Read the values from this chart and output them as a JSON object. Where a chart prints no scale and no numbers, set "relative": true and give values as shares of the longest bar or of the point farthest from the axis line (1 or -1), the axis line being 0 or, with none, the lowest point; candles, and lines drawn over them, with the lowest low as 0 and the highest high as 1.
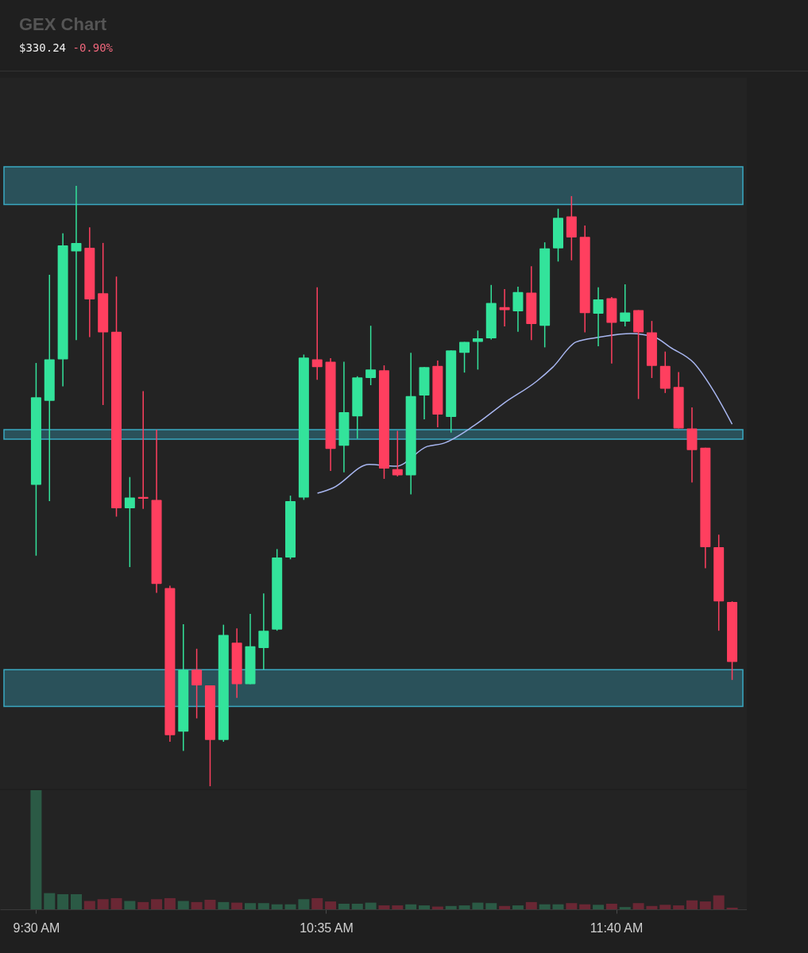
{
  "chart_data": [
    {
      "type": "candlestick",
      "title": "GEX Chart",
      "subtitle": "$330.24",
      "annotations": [
        "-0.90%"
      ],
      "relative": true,
      "tick_labels": false,
      "x": [
        9.5,
        9.55,
        9.6,
        9.65,
        9.7,
        9.75,
        9.8,
        9.85,
        9.9,
        9.95,
        10,
        10.05,
        10.1,
        10.15,
        10.2,
        10.25,
        10.3,
        10.35,
        10.4,
        10.45,
        10.5,
        10.55,
        10.6,
        10.65,
        10.7,
        10.75,
        10.8,
        10.85,
        10.9,
        10.95,
        11,
        11.05,
        11.1,
        11.15,
        11.2,
        11.25,
        11.3,
        11.35,
        11.4,
        11.45,
        11.5,
        11.55,
        11.6,
        11.65,
        11.7,
        11.75,
        11.8,
        11.85,
        11.9,
        11.95,
        12,
        12.05,
        12.1
      ],
      "xlim": [
        9.38,
        12.14
      ],
      "ohlc": [
        [
          0.502,
          0.705,
          0.384,
          0.648
        ],
        [
          0.642,
          0.852,
          0.475,
          0.711
        ],
        [
          0.711,
          0.921,
          0.666,
          0.901
        ],
        [
          0.891,
          1,
          0.743,
          0.905
        ],
        [
          0.897,
          0.931,
          0.748,
          0.811
        ],
        [
          0.821,
          0.905,
          0.635,
          0.756
        ],
        [
          0.757,
          0.849,
          0.449,
          0.463
        ],
        [
          0.463,
          0.515,
          0.365,
          0.481
        ],
        [
          0.482,
          0.658,
          0.462,
          0.479
        ],
        [
          0.477,
          0.594,
          0.322,
          0.337
        ],
        [
          0.33,
          0.334,
          0.074,
          0.085
        ],
        [
          0.091,
          0.27,
          0.059,
          0.194
        ],
        [
          0.194,
          0.229,
          0.113,
          0.168
        ],
        [
          0.168,
          0.168,
          0,
          0.077
        ],
        [
          0.077,
          0.269,
          0.074,
          0.252
        ],
        [
          0.239,
          0.263,
          0.147,
          0.17
        ],
        [
          0.17,
          0.287,
          0.17,
          0.233
        ],
        [
          0.23,
          0.321,
          0.194,
          0.259
        ],
        [
          0.261,
          0.395,
          0.259,
          0.381
        ],
        [
          0.381,
          0.484,
          0.378,
          0.475
        ],
        [
          0.481,
          0.719,
          0.477,
          0.714
        ],
        [
          0.711,
          0.831,
          0.677,
          0.698
        ],
        [
          0.707,
          0.713,
          0.525,
          0.562
        ],
        [
          0.567,
          0.707,
          0.523,
          0.623
        ],
        [
          0.616,
          0.683,
          0.579,
          0.681
        ],
        [
          0.68,
          0.767,
          0.668,
          0.694
        ],
        [
          0.693,
          0.701,
          0.512,
          0.529
        ],
        [
          0.528,
          0.592,
          0.516,
          0.518
        ],
        [
          0.518,
          0.722,
          0.486,
          0.65
        ],
        [
          0.651,
          0.698,
          0.611,
          0.698
        ],
        [
          0.7,
          0.709,
          0.598,
          0.619
        ],
        [
          0.615,
          0.726,
          0.589,
          0.726
        ],
        [
          0.722,
          0.74,
          0.689,
          0.74
        ],
        [
          0.74,
          0.759,
          0.694,
          0.746
        ],
        [
          0.746,
          0.835,
          0.744,
          0.805
        ],
        [
          0.798,
          0.828,
          0.766,
          0.793
        ],
        [
          0.791,
          0.832,
          0.757,
          0.823
        ],
        [
          0.822,
          0.866,
          0.743,
          0.77
        ],
        [
          0.767,
          0.906,
          0.731,
          0.896
        ],
        [
          0.896,
          0.962,
          0.874,
          0.947
        ],
        [
          0.949,
          0.983,
          0.876,
          0.914
        ],
        [
          0.915,
          0.934,
          0.756,
          0.788
        ],
        [
          0.787,
          0.831,
          0.733,
          0.811
        ],
        [
          0.813,
          0.815,
          0.704,
          0.772
        ],
        [
          0.774,
          0.836,
          0.766,
          0.789
        ],
        [
          0.793,
          0.793,
          0.645,
          0.756
        ],
        [
          0.756,
          0.775,
          0.68,
          0.7
        ],
        [
          0.7,
          0.724,
          0.655,
          0.662
        ],
        [
          0.665,
          0.69,
          0.596,
          0.596
        ],
        [
          0.596,
          0.631,
          0.506,
          0.56
        ],
        [
          0.564,
          0.564,
          0.363,
          0.398
        ],
        [
          0.398,
          0.419,
          0.259,
          0.308
        ],
        [
          0.307,
          0.308,
          0.177,
          0.207
        ]
      ],
      "colors": [
        "#33e39b",
        "#33e39b",
        "#33e39b",
        "#33e39b",
        "#ff3f5f",
        "#ff3f5f",
        "#ff3f5f",
        "#33e39b",
        "#ff3f5f",
        "#ff3f5f",
        "#ff3f5f",
        "#33e39b",
        "#ff3f5f",
        "#ff3f5f",
        "#33e39b",
        "#ff3f5f",
        "#33e39b",
        "#33e39b",
        "#33e39b",
        "#33e39b",
        "#33e39b",
        "#ff3f5f",
        "#ff3f5f",
        "#33e39b",
        "#33e39b",
        "#33e39b",
        "#ff3f5f",
        "#ff3f5f",
        "#33e39b",
        "#33e39b",
        "#ff3f5f",
        "#33e39b",
        "#33e39b",
        "#33e39b",
        "#33e39b",
        "#ff3f5f",
        "#33e39b",
        "#ff3f5f",
        "#33e39b",
        "#33e39b",
        "#ff3f5f",
        "#ff3f5f",
        "#33e39b",
        "#ff3f5f",
        "#33e39b",
        "#ff3f5f",
        "#ff3f5f",
        "#ff3f5f",
        "#ff3f5f",
        "#ff3f5f",
        "#ff3f5f",
        "#ff3f5f",
        "#ff3f5f"
      ],
      "series": [
        {
          "type": "line",
          "color": "#a8b6f0",
          "x": [
            10.551,
            10.61,
            10.744,
            10.844,
            10.961,
            11.02,
            11.137,
            11.254,
            11.371,
            11.43,
            11.517,
            11.605,
            11.722,
            11.81,
            11.869,
            11.957,
            12.03,
            12.1
          ],
          "values": [
            0.488,
            0.497,
            0.536,
            0.533,
            0.566,
            0.571,
            0.601,
            0.64,
            0.675,
            0.698,
            0.74,
            0.748,
            0.754,
            0.748,
            0.731,
            0.705,
            0.659,
            0.603
          ]
        }
      ],
      "bands": [
        {
          "axis": "y",
          "from": 0.969,
          "to": 1.032,
          "color": "#3aa9c2"
        },
        {
          "axis": "y",
          "from": 0.578,
          "to": 0.594,
          "color": "#3aa9c2"
        },
        {
          "axis": "y",
          "from": 0.133,
          "to": 0.194,
          "color": "#3aa9c2"
        }
      ]
    },
    {
      "type": "bar",
      "relative": true,
      "tick_labels": "x",
      "x": [
        9.5,
        9.55,
        9.6,
        9.65,
        9.7,
        9.75,
        9.8,
        9.85,
        9.9,
        9.95,
        10,
        10.05,
        10.1,
        10.15,
        10.2,
        10.25,
        10.3,
        10.35,
        10.4,
        10.45,
        10.5,
        10.55,
        10.6,
        10.65,
        10.7,
        10.75,
        10.8,
        10.85,
        10.9,
        10.95,
        11,
        11.05,
        11.1,
        11.15,
        11.2,
        11.25,
        11.3,
        11.35,
        11.4,
        11.45,
        11.5,
        11.55,
        11.6,
        11.65,
        11.7,
        11.75,
        11.8,
        11.85,
        11.9,
        11.95,
        12,
        12.05,
        12.1
      ],
      "xlim": [
        9.38,
        12.14
      ],
      "xticks": [
        {
          "value": 9.5,
          "label": "9:30 AM"
        },
        {
          "value": 10.5833,
          "label": "10:35 AM"
        },
        {
          "value": 11.6667,
          "label": "11:40 AM"
        }
      ],
      "values": [
        1,
        0.136,
        0.127,
        0.127,
        0.07,
        0.085,
        0.094,
        0.07,
        0.061,
        0.085,
        0.094,
        0.07,
        0.061,
        0.08,
        0.061,
        0.056,
        0.052,
        0.052,
        0.042,
        0.042,
        0.085,
        0.094,
        0.066,
        0.047,
        0.047,
        0.056,
        0.033,
        0.033,
        0.042,
        0.033,
        0.023,
        0.028,
        0.033,
        0.056,
        0.052,
        0.028,
        0.033,
        0.061,
        0.042,
        0.042,
        0.052,
        0.042,
        0.038,
        0.047,
        0.019,
        0.052,
        0.028,
        0.038,
        0.033,
        0.075,
        0.066,
        0.117,
        0.014
      ],
      "colors": [
        "#2b5a45",
        "#2b5a45",
        "#2b5a45",
        "#2b5a45",
        "#6a2734",
        "#6a2734",
        "#6a2734",
        "#2b5a45",
        "#6a2734",
        "#6a2734",
        "#6a2734",
        "#2b5a45",
        "#6a2734",
        "#6a2734",
        "#2b5a45",
        "#6a2734",
        "#2b5a45",
        "#2b5a45",
        "#2b5a45",
        "#2b5a45",
        "#2b5a45",
        "#6a2734",
        "#6a2734",
        "#2b5a45",
        "#2b5a45",
        "#2b5a45",
        "#6a2734",
        "#6a2734",
        "#2b5a45",
        "#2b5a45",
        "#6a2734",
        "#2b5a45",
        "#2b5a45",
        "#2b5a45",
        "#2b5a45",
        "#6a2734",
        "#2b5a45",
        "#6a2734",
        "#2b5a45",
        "#2b5a45",
        "#6a2734",
        "#6a2734",
        "#2b5a45",
        "#6a2734",
        "#2b5a45",
        "#6a2734",
        "#6a2734",
        "#6a2734",
        "#6a2734",
        "#6a2734",
        "#6a2734",
        "#6a2734",
        "#6a2734"
      ]
    }
  ]
}
